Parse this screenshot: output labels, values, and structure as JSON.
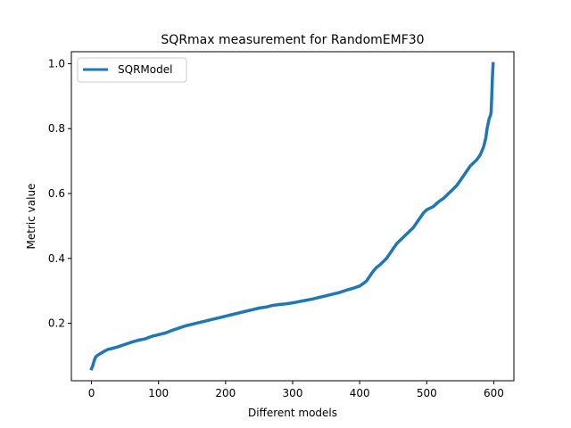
{
  "chart_data": {
    "type": "line",
    "title": "SQRmax measurement for RandomEMF30",
    "xlabel": "Different models",
    "ylabel": "Metric value",
    "xlim": [
      -30,
      630
    ],
    "ylim": [
      0.023,
      1.037
    ],
    "xticks": [
      0,
      100,
      200,
      300,
      400,
      500,
      600
    ],
    "yticks": [
      0.2,
      0.4,
      0.6,
      0.8,
      1.0
    ],
    "ytick_labels": [
      "0.2",
      "0.4",
      "0.6",
      "0.8",
      "1.0"
    ],
    "grid": false,
    "legend_position": "top-left",
    "colors": {
      "series": "#1f77b4"
    },
    "series": [
      {
        "name": "SQRModel",
        "x": [
          0,
          2,
          4,
          6,
          8,
          12,
          16,
          20,
          25,
          30,
          40,
          50,
          60,
          70,
          80,
          90,
          100,
          110,
          120,
          130,
          140,
          150,
          160,
          170,
          180,
          190,
          200,
          210,
          220,
          230,
          240,
          250,
          260,
          270,
          280,
          290,
          300,
          310,
          320,
          330,
          340,
          350,
          360,
          370,
          380,
          390,
          400,
          405,
          410,
          415,
          420,
          425,
          430,
          435,
          440,
          445,
          450,
          455,
          460,
          465,
          470,
          475,
          480,
          485,
          490,
          495,
          500,
          505,
          510,
          515,
          520,
          525,
          530,
          535,
          540,
          545,
          550,
          555,
          560,
          565,
          570,
          575,
          580,
          585,
          588,
          590,
          592,
          593,
          594,
          595,
          596,
          597,
          598,
          599
        ],
        "values": [
          0.06,
          0.07,
          0.085,
          0.095,
          0.1,
          0.105,
          0.11,
          0.115,
          0.12,
          0.122,
          0.128,
          0.135,
          0.142,
          0.148,
          0.152,
          0.16,
          0.165,
          0.17,
          0.178,
          0.185,
          0.192,
          0.197,
          0.202,
          0.207,
          0.212,
          0.217,
          0.222,
          0.227,
          0.232,
          0.237,
          0.242,
          0.247,
          0.25,
          0.255,
          0.258,
          0.26,
          0.263,
          0.267,
          0.271,
          0.275,
          0.28,
          0.285,
          0.29,
          0.295,
          0.302,
          0.308,
          0.315,
          0.322,
          0.33,
          0.345,
          0.36,
          0.372,
          0.38,
          0.39,
          0.4,
          0.415,
          0.43,
          0.445,
          0.455,
          0.465,
          0.475,
          0.485,
          0.495,
          0.51,
          0.525,
          0.54,
          0.55,
          0.555,
          0.56,
          0.57,
          0.578,
          0.585,
          0.595,
          0.605,
          0.615,
          0.625,
          0.64,
          0.655,
          0.67,
          0.685,
          0.695,
          0.705,
          0.72,
          0.745,
          0.77,
          0.8,
          0.82,
          0.83,
          0.835,
          0.84,
          0.85,
          0.9,
          0.96,
          1.0
        ]
      }
    ]
  }
}
